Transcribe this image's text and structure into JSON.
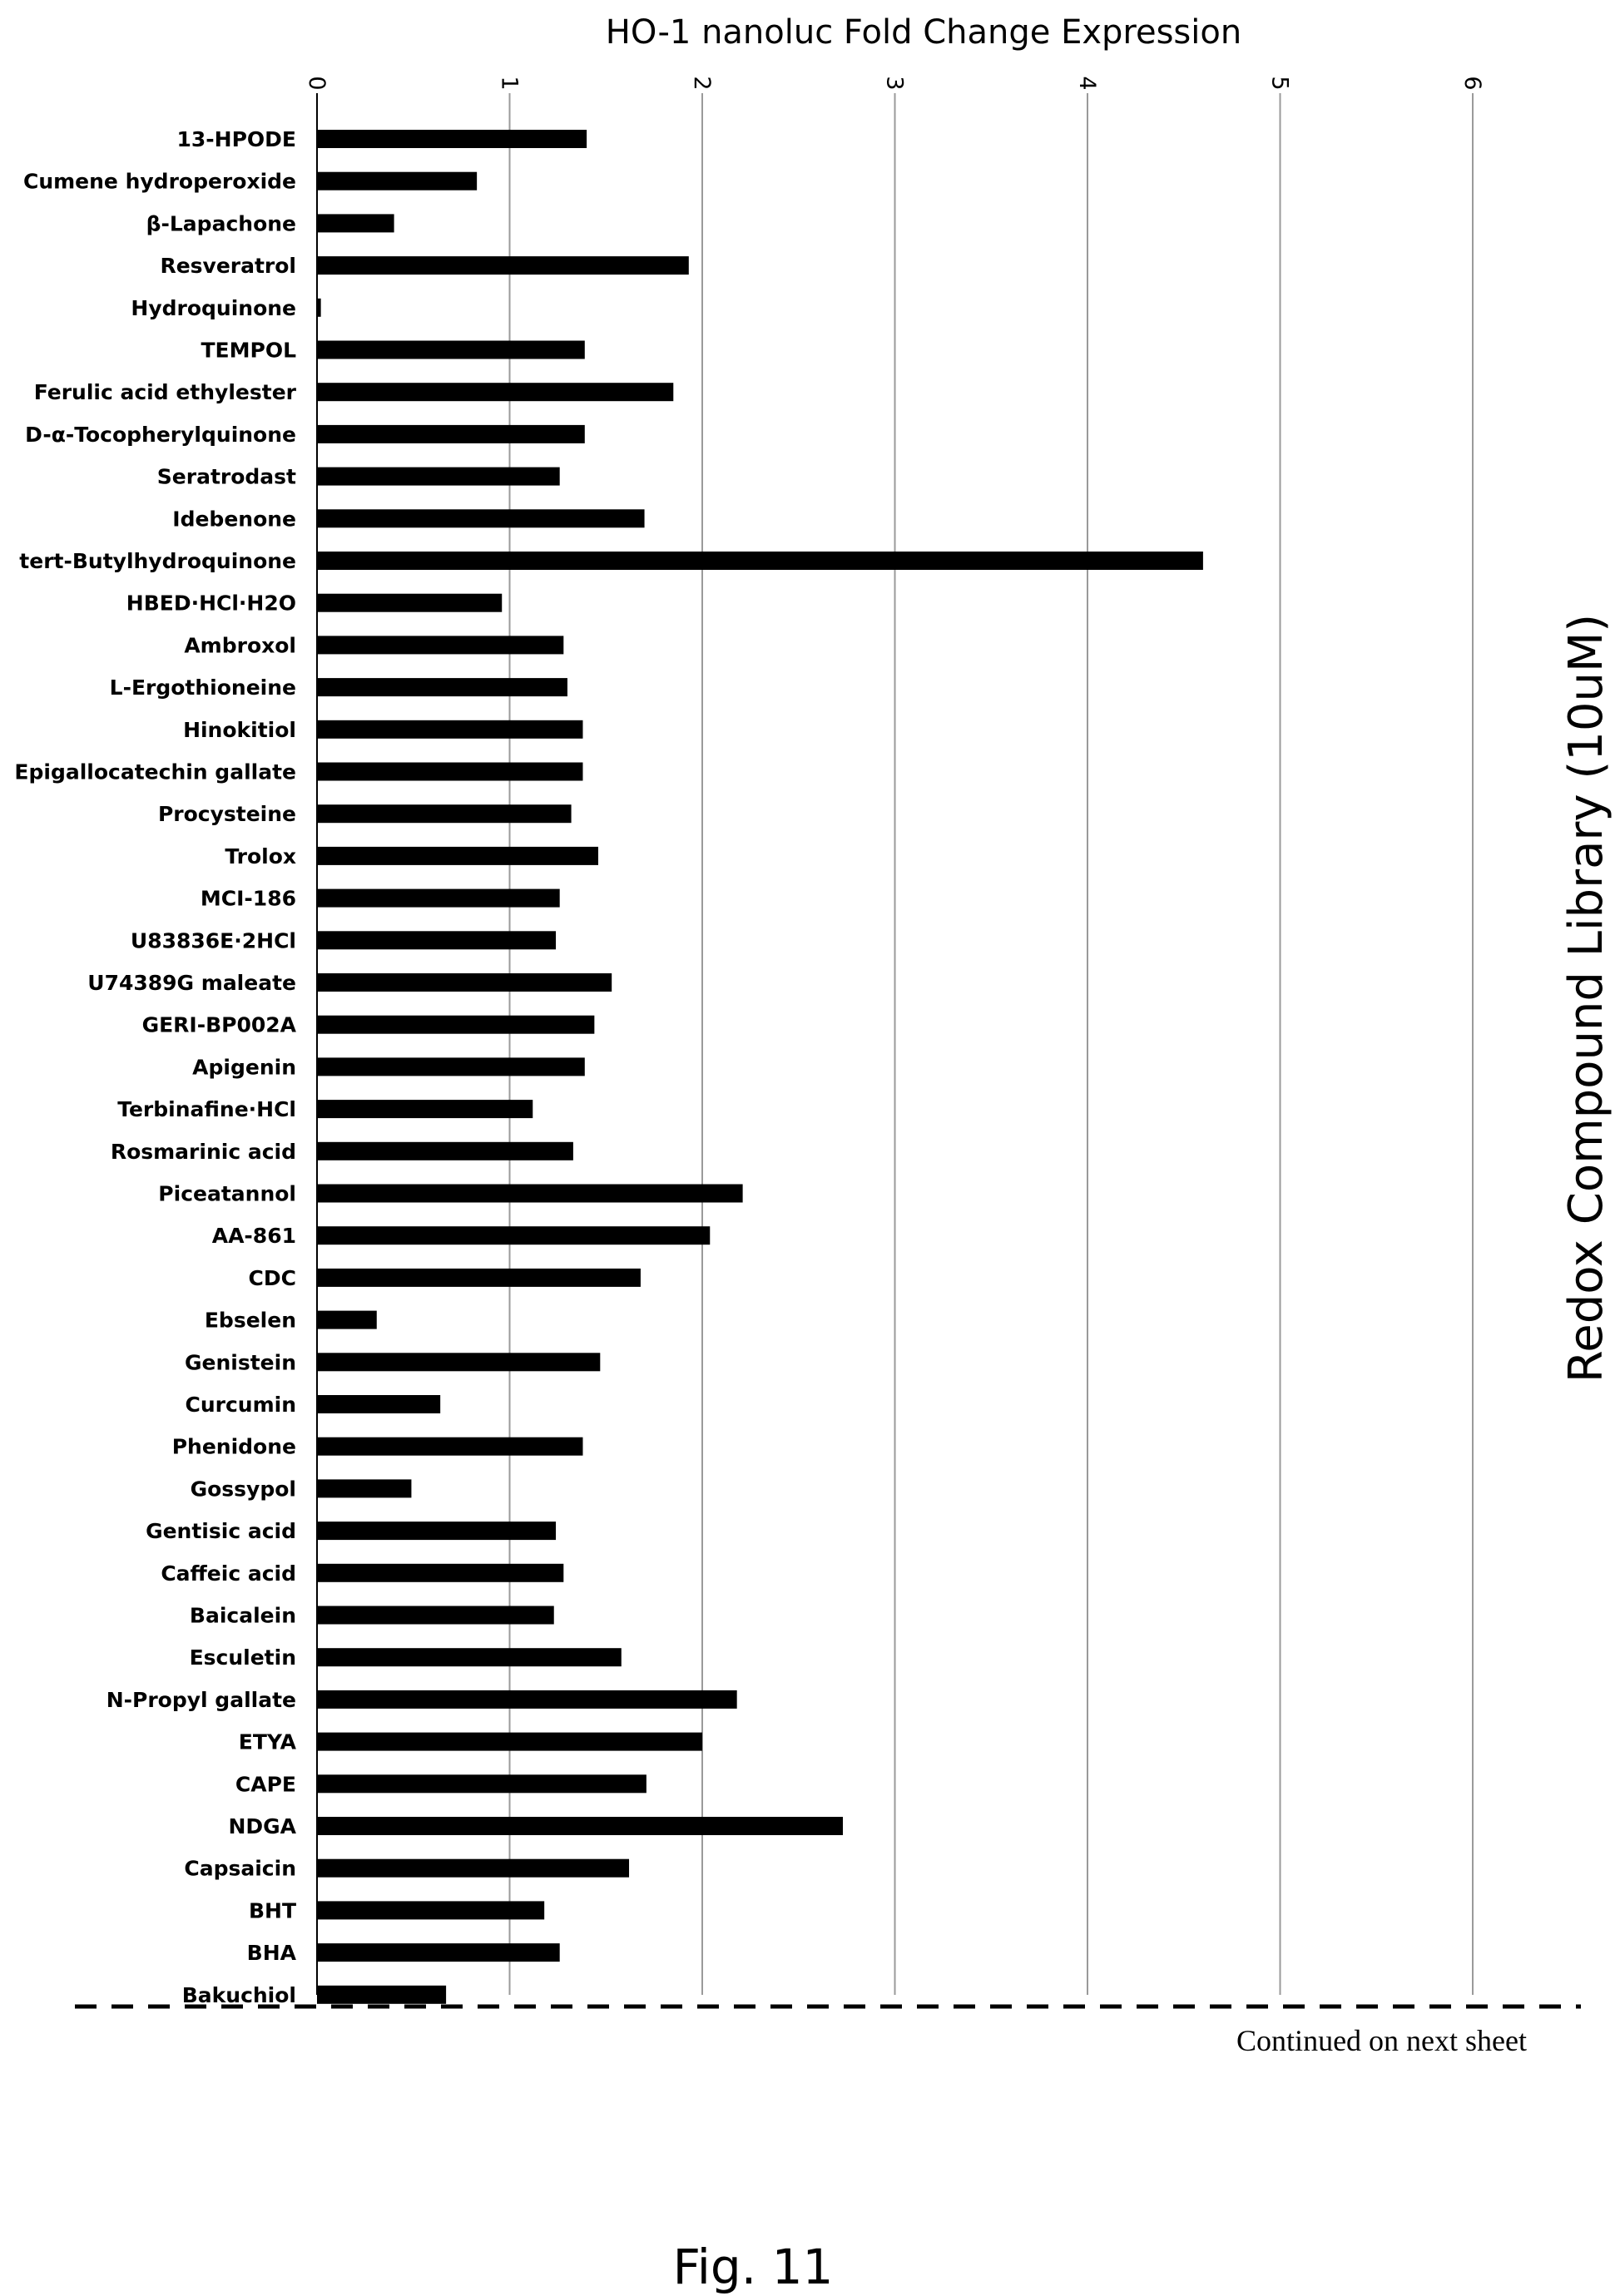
{
  "chart_data": {
    "type": "bar",
    "orientation": "horizontal",
    "title": "HO-1 nanoluc Fold Change Expression",
    "ylabel": "Redox Compound Library (10uM)",
    "xlim": [
      0,
      6
    ],
    "xticks": [
      "0",
      "1",
      "2",
      "3",
      "4",
      "5",
      "6"
    ],
    "grid": true,
    "categories": [
      "13-HPODE",
      "Cumene hydroperoxide",
      "β-Lapachone",
      "Resveratrol",
      "Hydroquinone",
      "TEMPOL",
      "Ferulic acid ethylester",
      "D-α-Tocopherylquinone",
      "Seratrodast",
      "Idebenone",
      "tert-Butylhydroquinone",
      "HBED·HCl·H2O",
      "Ambroxol",
      "L-Ergothioneine",
      "Hinokitiol",
      "Epigallocatechin gallate",
      "Procysteine",
      "Trolox",
      "MCI-186",
      "U83836E·2HCl",
      "U74389G maleate",
      "GERI-BP002A",
      "Apigenin",
      "Terbinafine·HCl",
      "Rosmarinic acid",
      "Piceatannol",
      "AA-861",
      "CDC",
      "Ebselen",
      "Genistein",
      "Curcumin",
      "Phenidone",
      "Gossypol",
      "Gentisic acid",
      "Caffeic acid",
      "Baicalein",
      "Esculetin",
      "N-Propyl gallate",
      "ETYA",
      "CAPE",
      "NDGA",
      "Capsaicin",
      "BHT",
      "BHA",
      "Bakuchiol"
    ],
    "values": [
      1.4,
      0.83,
      0.4,
      1.93,
      0.02,
      1.39,
      1.85,
      1.39,
      1.26,
      1.7,
      4.6,
      0.96,
      1.28,
      1.3,
      1.38,
      1.38,
      1.32,
      1.46,
      1.26,
      1.24,
      1.53,
      1.44,
      1.39,
      1.12,
      1.33,
      2.21,
      2.04,
      1.68,
      0.31,
      1.47,
      0.64,
      1.38,
      0.49,
      1.24,
      1.28,
      1.23,
      1.58,
      2.18,
      2.0,
      1.71,
      2.73,
      1.62,
      1.18,
      1.26,
      0.67
    ],
    "bar_color": "#000000"
  },
  "footer": {
    "continued": "Continued on next sheet",
    "figure_label": "Fig. 11"
  }
}
